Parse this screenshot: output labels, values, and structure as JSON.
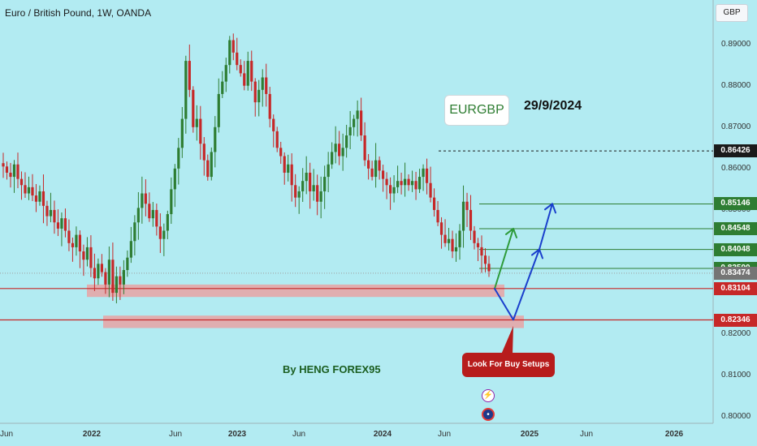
{
  "header": {
    "title": "Euro / British Pound, 1W, OANDA",
    "currency": "GBP"
  },
  "annotations": {
    "symbol": "EURGBP",
    "date": "29/9/2024",
    "author": "By HENG FOREX95",
    "callout": "Look For Buy Setups"
  },
  "icons": {
    "lightning": "lightning-icon",
    "globe": "globe-icon"
  },
  "colors": {
    "background": "#b2ebf2",
    "bull": "#2e7d32",
    "bear": "#c62828",
    "zone": "#ef9a9a",
    "support_line": "#c62828",
    "target_line": "#2e7d32",
    "green_arrow": "#2e9b3a",
    "blue_arrow": "#1a3fcc",
    "tag_green": "#2e7d32",
    "tag_red": "#c62828",
    "tag_gray": "#757575",
    "tag_dark": "#1a1a1a"
  },
  "chart_data": {
    "type": "candlestick",
    "symbol": "Euro / British Pound",
    "timeframe": "1W",
    "exchange": "OANDA",
    "ylim": [
      0.7985,
      0.9005
    ],
    "y_ticks": [
      "0.80000",
      "0.81000",
      "0.82000",
      "0.83000",
      "0.84000",
      "0.85000",
      "0.86000",
      "0.87000",
      "0.88000",
      "0.89000"
    ],
    "x_ticks": [
      "Jun",
      "2022",
      "Jun",
      "2023",
      "Jun",
      "2024",
      "Jun",
      "2025",
      "Jun",
      "2026"
    ],
    "closes": [
      0.8605,
      0.859,
      0.858,
      0.861,
      0.8575,
      0.856,
      0.854,
      0.8555,
      0.8535,
      0.852,
      0.8545,
      0.851,
      0.8485,
      0.85,
      0.847,
      0.8455,
      0.848,
      0.845,
      0.842,
      0.841,
      0.844,
      0.84,
      0.838,
      0.841,
      0.836,
      0.8335,
      0.837,
      0.835,
      0.832,
      0.838,
      0.83,
      0.834,
      0.832,
      0.8355,
      0.8385,
      0.8425,
      0.847,
      0.8505,
      0.854,
      0.8515,
      0.848,
      0.85,
      0.846,
      0.843,
      0.845,
      0.849,
      0.855,
      0.86,
      0.865,
      0.872,
      0.886,
      0.879,
      0.87,
      0.872,
      0.866,
      0.862,
      0.858,
      0.864,
      0.87,
      0.878,
      0.881,
      0.885,
      0.891,
      0.888,
      0.885,
      0.883,
      0.88,
      0.886,
      0.881,
      0.876,
      0.879,
      0.882,
      0.878,
      0.872,
      0.869,
      0.865,
      0.863,
      0.859,
      0.861,
      0.856,
      0.853,
      0.8545,
      0.857,
      0.859,
      0.8545,
      0.856,
      0.852,
      0.8545,
      0.858,
      0.861,
      0.864,
      0.866,
      0.863,
      0.865,
      0.868,
      0.87,
      0.872,
      0.874,
      0.868,
      0.862,
      0.86,
      0.858,
      0.862,
      0.8595,
      0.8575,
      0.856,
      0.854,
      0.8555,
      0.857,
      0.856,
      0.8575,
      0.856,
      0.857,
      0.855,
      0.858,
      0.86,
      0.8565,
      0.853,
      0.85,
      0.847,
      0.844,
      0.842,
      0.843,
      0.84,
      0.841,
      0.845,
      0.852,
      0.85,
      0.845,
      0.842,
      0.841,
      0.839,
      0.837,
      0.8352
    ],
    "current_price": 0.83474,
    "horizontal_levels": [
      {
        "price": 0.86426,
        "style": "dashed",
        "color": "#1a1a1a"
      },
      {
        "price": 0.85146,
        "style": "solid",
        "color": "#2e7d32"
      },
      {
        "price": 0.84548,
        "style": "solid",
        "color": "#2e7d32"
      },
      {
        "price": 0.84048,
        "style": "solid",
        "color": "#2e7d32"
      },
      {
        "price": 0.8359,
        "style": "solid",
        "color": "#2e7d32"
      },
      {
        "price": 0.83104,
        "style": "solid",
        "color": "#c62828"
      },
      {
        "price": 0.82346,
        "style": "solid",
        "color": "#c62828"
      }
    ],
    "price_tags": [
      {
        "label": "0.86426",
        "price": 0.86426,
        "color": "#1a1a1a"
      },
      {
        "label": "0.85146",
        "price": 0.85146,
        "color": "#2e7d32"
      },
      {
        "label": "0.84548",
        "price": 0.84548,
        "color": "#2e7d32"
      },
      {
        "label": "0.84048",
        "price": 0.84048,
        "color": "#2e7d32"
      },
      {
        "label": "0.83590",
        "price": 0.8359,
        "color": "#2e7d32"
      },
      {
        "label": "0.83474",
        "price": 0.83474,
        "color": "#757575"
      },
      {
        "label": "0.83104",
        "price": 0.83104,
        "color": "#c62828"
      },
      {
        "label": "0.82346",
        "price": 0.82346,
        "color": "#c62828"
      }
    ],
    "support_zones": [
      {
        "low": 0.829,
        "high": 0.832
      },
      {
        "low": 0.8215,
        "high": 0.8245
      }
    ],
    "scenario_paths": [
      {
        "name": "green",
        "points": [
          0.831,
          0.8455
        ]
      },
      {
        "name": "blue",
        "points": [
          0.831,
          0.8235,
          0.8405,
          0.8515
        ]
      }
    ]
  }
}
